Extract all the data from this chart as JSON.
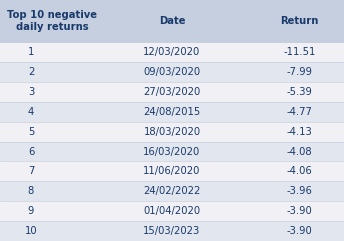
{
  "header_label": "Top 10 negative\ndaily returns",
  "col_headers": [
    "Date",
    "Return"
  ],
  "ranks": [
    1,
    2,
    3,
    4,
    5,
    6,
    7,
    8,
    9,
    10
  ],
  "dates": [
    "12/03/2020",
    "09/03/2020",
    "27/03/2020",
    "24/08/2015",
    "18/03/2020",
    "16/03/2020",
    "11/06/2020",
    "24/02/2022",
    "01/04/2020",
    "15/03/2023"
  ],
  "returns": [
    "-11.51",
    "-7.99",
    "-5.39",
    "-4.77",
    "-4.13",
    "-4.08",
    "-4.06",
    "-3.96",
    "-3.90",
    "-3.90"
  ],
  "header_bg": "#c5cfdf",
  "row_bg_odd": "#f0f0f5",
  "row_bg_even": "#e2e6ef",
  "text_color": "#1a3a6b",
  "header_fontsize": 7.2,
  "cell_fontsize": 7.2,
  "fig_width": 3.44,
  "fig_height": 2.41,
  "dpi": 100
}
